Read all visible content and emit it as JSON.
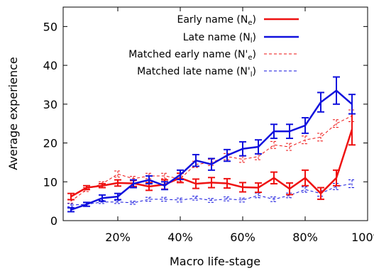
{
  "chart_data": {
    "type": "line",
    "xlabel": "Macro life-stage",
    "ylabel": "Average experience",
    "xlim": [
      2.5,
      100
    ],
    "ylim": [
      0,
      55
    ],
    "x_ticks": [
      {
        "value": 20,
        "label": "20%"
      },
      {
        "value": 40,
        "label": "40%"
      },
      {
        "value": 60,
        "label": "60%"
      },
      {
        "value": 80,
        "label": "80%"
      },
      {
        "value": 100,
        "label": "100%"
      }
    ],
    "y_ticks": [
      {
        "value": 0,
        "label": "0"
      },
      {
        "value": 10,
        "label": "10"
      },
      {
        "value": 20,
        "label": "20"
      },
      {
        "value": 30,
        "label": "30"
      },
      {
        "value": 40,
        "label": "40"
      },
      {
        "value": 50,
        "label": "50"
      }
    ],
    "legend_position": "top-right",
    "x": [
      5,
      10,
      15,
      20,
      25,
      30,
      35,
      40,
      45,
      50,
      55,
      60,
      65,
      70,
      75,
      80,
      85,
      90,
      95
    ],
    "series": [
      {
        "name": "Early name (Ne)",
        "legend": {
          "base": "Early name (N",
          "sub": "e",
          "tail": ")"
        },
        "style": "solid",
        "color": "#ee1111",
        "values": [
          6.2,
          8.5,
          9.0,
          9.7,
          9.6,
          8.8,
          9.3,
          11.0,
          9.5,
          9.8,
          9.6,
          8.6,
          8.5,
          11.0,
          8.2,
          11.0,
          7.0,
          11.0,
          23.5
        ],
        "err": [
          0.8,
          0.5,
          0.5,
          0.8,
          0.8,
          1.0,
          1.2,
          1.2,
          1.2,
          1.3,
          1.2,
          1.2,
          1.2,
          1.5,
          1.5,
          2.0,
          1.5,
          2.0,
          4.0
        ]
      },
      {
        "name": "Late name (Nl)",
        "legend": {
          "base": "Late name (N",
          "sub": "l",
          "tail": ")"
        },
        "style": "solid",
        "color": "#1111dd",
        "values": [
          2.8,
          4.2,
          5.8,
          6.2,
          9.5,
          10.5,
          9.0,
          11.8,
          15.5,
          14.5,
          16.8,
          18.5,
          19.0,
          23.0,
          23.0,
          24.5,
          30.5,
          33.5,
          30.0
        ],
        "err": [
          0.5,
          0.5,
          0.8,
          0.8,
          1.0,
          1.0,
          1.0,
          1.2,
          1.5,
          1.5,
          1.5,
          1.8,
          1.8,
          1.8,
          1.8,
          2.0,
          2.5,
          3.5,
          2.5
        ]
      },
      {
        "name": "Matched early name (N'e)",
        "legend": {
          "base": "Matched early name (N'",
          "sub": "e",
          "tail": ")"
        },
        "style": "dashed",
        "color": "#ee1111",
        "values": [
          5.0,
          8.0,
          9.5,
          12.0,
          10.8,
          11.5,
          11.5,
          10.8,
          14.5,
          15.0,
          16.5,
          15.8,
          16.5,
          19.5,
          19.0,
          20.8,
          21.5,
          25.0,
          27.0
        ],
        "err": [
          0.5,
          0.5,
          0.5,
          0.8,
          0.6,
          0.7,
          0.7,
          0.7,
          0.8,
          0.8,
          0.8,
          0.8,
          0.8,
          0.9,
          0.9,
          1.0,
          1.0,
          1.0,
          1.5
        ]
      },
      {
        "name": "Matched late name (N'l)",
        "legend": {
          "base": "Matched late name (N'",
          "sub": "l",
          "tail": ")"
        },
        "style": "dashed",
        "color": "#1111dd",
        "values": [
          4.0,
          4.2,
          4.8,
          4.8,
          4.6,
          5.5,
          5.5,
          5.3,
          5.8,
          5.2,
          5.6,
          5.3,
          6.5,
          5.5,
          6.5,
          8.0,
          7.0,
          8.8,
          9.5
        ],
        "err": [
          0.4,
          0.4,
          0.4,
          0.4,
          0.4,
          0.5,
          0.5,
          0.5,
          0.5,
          0.5,
          0.5,
          0.5,
          0.6,
          0.6,
          0.6,
          0.7,
          0.7,
          0.8,
          1.0
        ]
      }
    ]
  }
}
